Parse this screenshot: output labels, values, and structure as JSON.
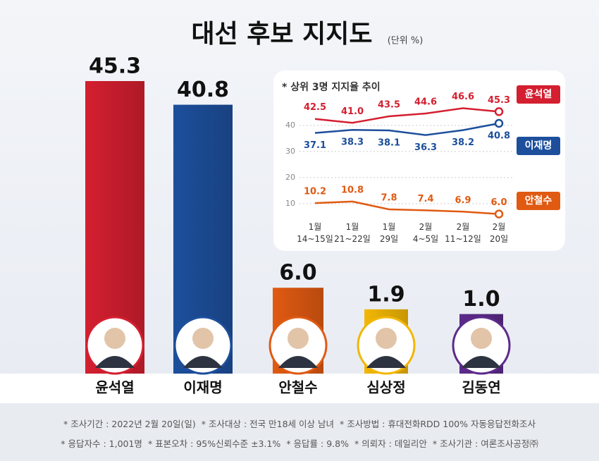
{
  "chart_data": [
    {
      "type": "bar",
      "title": "대선 후보 지지도",
      "subtitle": "(단위 %)",
      "categories": [
        "윤석열",
        "이재명",
        "안철수",
        "심상정",
        "김동연"
      ],
      "values": [
        45.3,
        40.8,
        6.0,
        1.9,
        1.0
      ],
      "value_labels": [
        "45.3",
        "40.8",
        "6.0",
        "1.9",
        "1.0"
      ],
      "colors": [
        "#d41f30",
        "#1d4f9c",
        "#e05a12",
        "#f2b705",
        "#5c2b8a"
      ]
    },
    {
      "type": "line",
      "title": "* 상위 3명 지지율 추이",
      "categories": [
        "1월 14~15일",
        "1월 21~22일",
        "1월 29일",
        "2월 4~5일",
        "2월 11~12일",
        "2월 20일"
      ],
      "ylim": [
        4,
        50
      ],
      "yticks": [
        10,
        20,
        30,
        40
      ],
      "grid": true,
      "series": [
        {
          "name": "윤석열",
          "color": "#d41f30",
          "values": [
            42.5,
            41.0,
            43.5,
            44.6,
            46.6,
            45.3
          ],
          "value_labels": [
            "42.5",
            "41.0",
            "43.5",
            "44.6",
            "46.6",
            "45.3"
          ]
        },
        {
          "name": "이재명",
          "color": "#1d4f9c",
          "values": [
            37.1,
            38.3,
            38.1,
            36.3,
            38.2,
            40.8
          ],
          "value_labels": [
            "37.1",
            "38.3",
            "38.1",
            "36.3",
            "38.2",
            "40.8"
          ]
        },
        {
          "name": "안철수",
          "color": "#e05a12",
          "values": [
            10.2,
            10.8,
            7.8,
            7.4,
            6.9,
            6.0
          ],
          "value_labels": [
            "10.2",
            "10.8",
            "7.8",
            "7.4",
            "6.9",
            "6.0"
          ]
        }
      ]
    }
  ],
  "notes": [
    [
      "* 조사기간 : 2022년 2월 20일(일)",
      "* 조사대상 : 전국 만18세 이상 남녀",
      "* 조사방법 : 휴대전화RDD 100% 자동응답전화조사"
    ],
    [
      "* 응답자수 : 1,001명",
      "* 표본오차 : 95%신뢰수준 ±3.1%",
      "* 응답률 : 9.8%",
      "* 의뢰자 : 데일리안",
      "* 조사기관 : 여론조사공정㈜"
    ]
  ]
}
